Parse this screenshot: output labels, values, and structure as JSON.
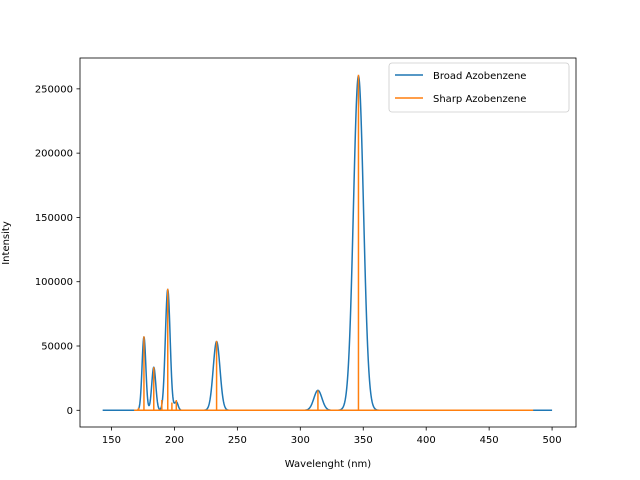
{
  "chart_data": {
    "type": "line",
    "xlabel": "Wavelenght (nm)",
    "ylabel": "Intensity",
    "xlim": [
      125,
      519
    ],
    "ylim": [
      -13000,
      274000
    ],
    "xticks": [
      150,
      200,
      250,
      300,
      350,
      400,
      450,
      500
    ],
    "yticks": [
      0,
      50000,
      100000,
      150000,
      200000,
      250000
    ],
    "grid": false,
    "legend_position": "top-right",
    "series": [
      {
        "name": "Broad Azobenzene",
        "color": "#1f77b4",
        "style": "gaussian-sum",
        "x_range": [
          143,
          500
        ],
        "peaks": [
          {
            "center": 175.8,
            "height": 57000,
            "width": 1.5
          },
          {
            "center": 183.6,
            "height": 33500,
            "width": 1.6
          },
          {
            "center": 194.7,
            "height": 94000,
            "width": 1.9
          },
          {
            "center": 201.5,
            "height": 6500,
            "width": 1.4
          },
          {
            "center": 233.5,
            "height": 53500,
            "width": 2.7
          },
          {
            "center": 314.0,
            "height": 15500,
            "width": 3.2
          },
          {
            "center": 346.2,
            "height": 260000,
            "width": 4.0
          }
        ]
      },
      {
        "name": "Sharp Azobenzene",
        "color": "#ff7f0e",
        "style": "stick",
        "x_range": [
          168,
          485
        ],
        "sticks": [
          {
            "x": 171.5,
            "y": 2000
          },
          {
            "x": 175.8,
            "y": 57500
          },
          {
            "x": 183.6,
            "y": 33500
          },
          {
            "x": 190.0,
            "y": 8000
          },
          {
            "x": 194.7,
            "y": 94500
          },
          {
            "x": 198.0,
            "y": 6000
          },
          {
            "x": 201.5,
            "y": 8000
          },
          {
            "x": 233.5,
            "y": 54000
          },
          {
            "x": 314.0,
            "y": 15500
          },
          {
            "x": 346.2,
            "y": 261000
          }
        ]
      }
    ]
  }
}
